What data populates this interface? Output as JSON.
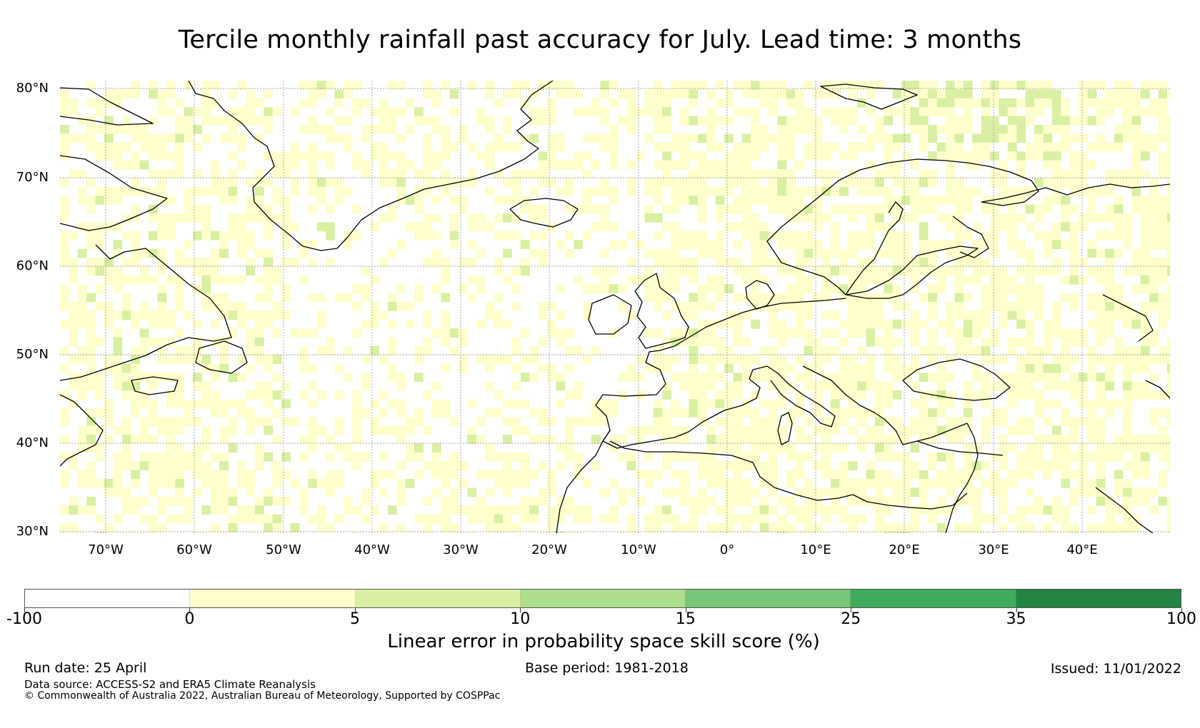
{
  "title": "Tercile monthly rainfall past accuracy for July. Lead time: 3 months",
  "map": {
    "lat_labels": [
      "80°N",
      "70°N",
      "60°N",
      "50°N",
      "40°N",
      "30°N"
    ],
    "lon_labels": [
      "70°W",
      "60°W",
      "50°W",
      "40°W",
      "30°W",
      "20°W",
      "10°W",
      "0°",
      "10°E",
      "20°E",
      "30°E",
      "40°E"
    ],
    "extent": {
      "lon_min": -75,
      "lon_max": 50,
      "lat_min": 30,
      "lat_max": 81
    },
    "grid_lines": true
  },
  "colorbar": {
    "labels": [
      "-100",
      "0",
      "5",
      "10",
      "15",
      "25",
      "35",
      "100"
    ],
    "colors": [
      "#ffffff",
      "#ffffcc",
      "#d9f0a3",
      "#addd8e",
      "#78c679",
      "#41ab5d",
      "#238443"
    ],
    "title": "Linear error in probability space skill score (%)"
  },
  "footer": {
    "run_date": "Run date: 25 April",
    "base_period": "Base period: 1981-2018",
    "issued": "Issued: 11/01/2022",
    "data_source": "Data source: ACCESS-S2 and ERA5 Climate Reanalysis",
    "copyright": "© Commonwealth of Australia 2022, Australian Bureau of Meteorology, Supported by COSPPac"
  }
}
